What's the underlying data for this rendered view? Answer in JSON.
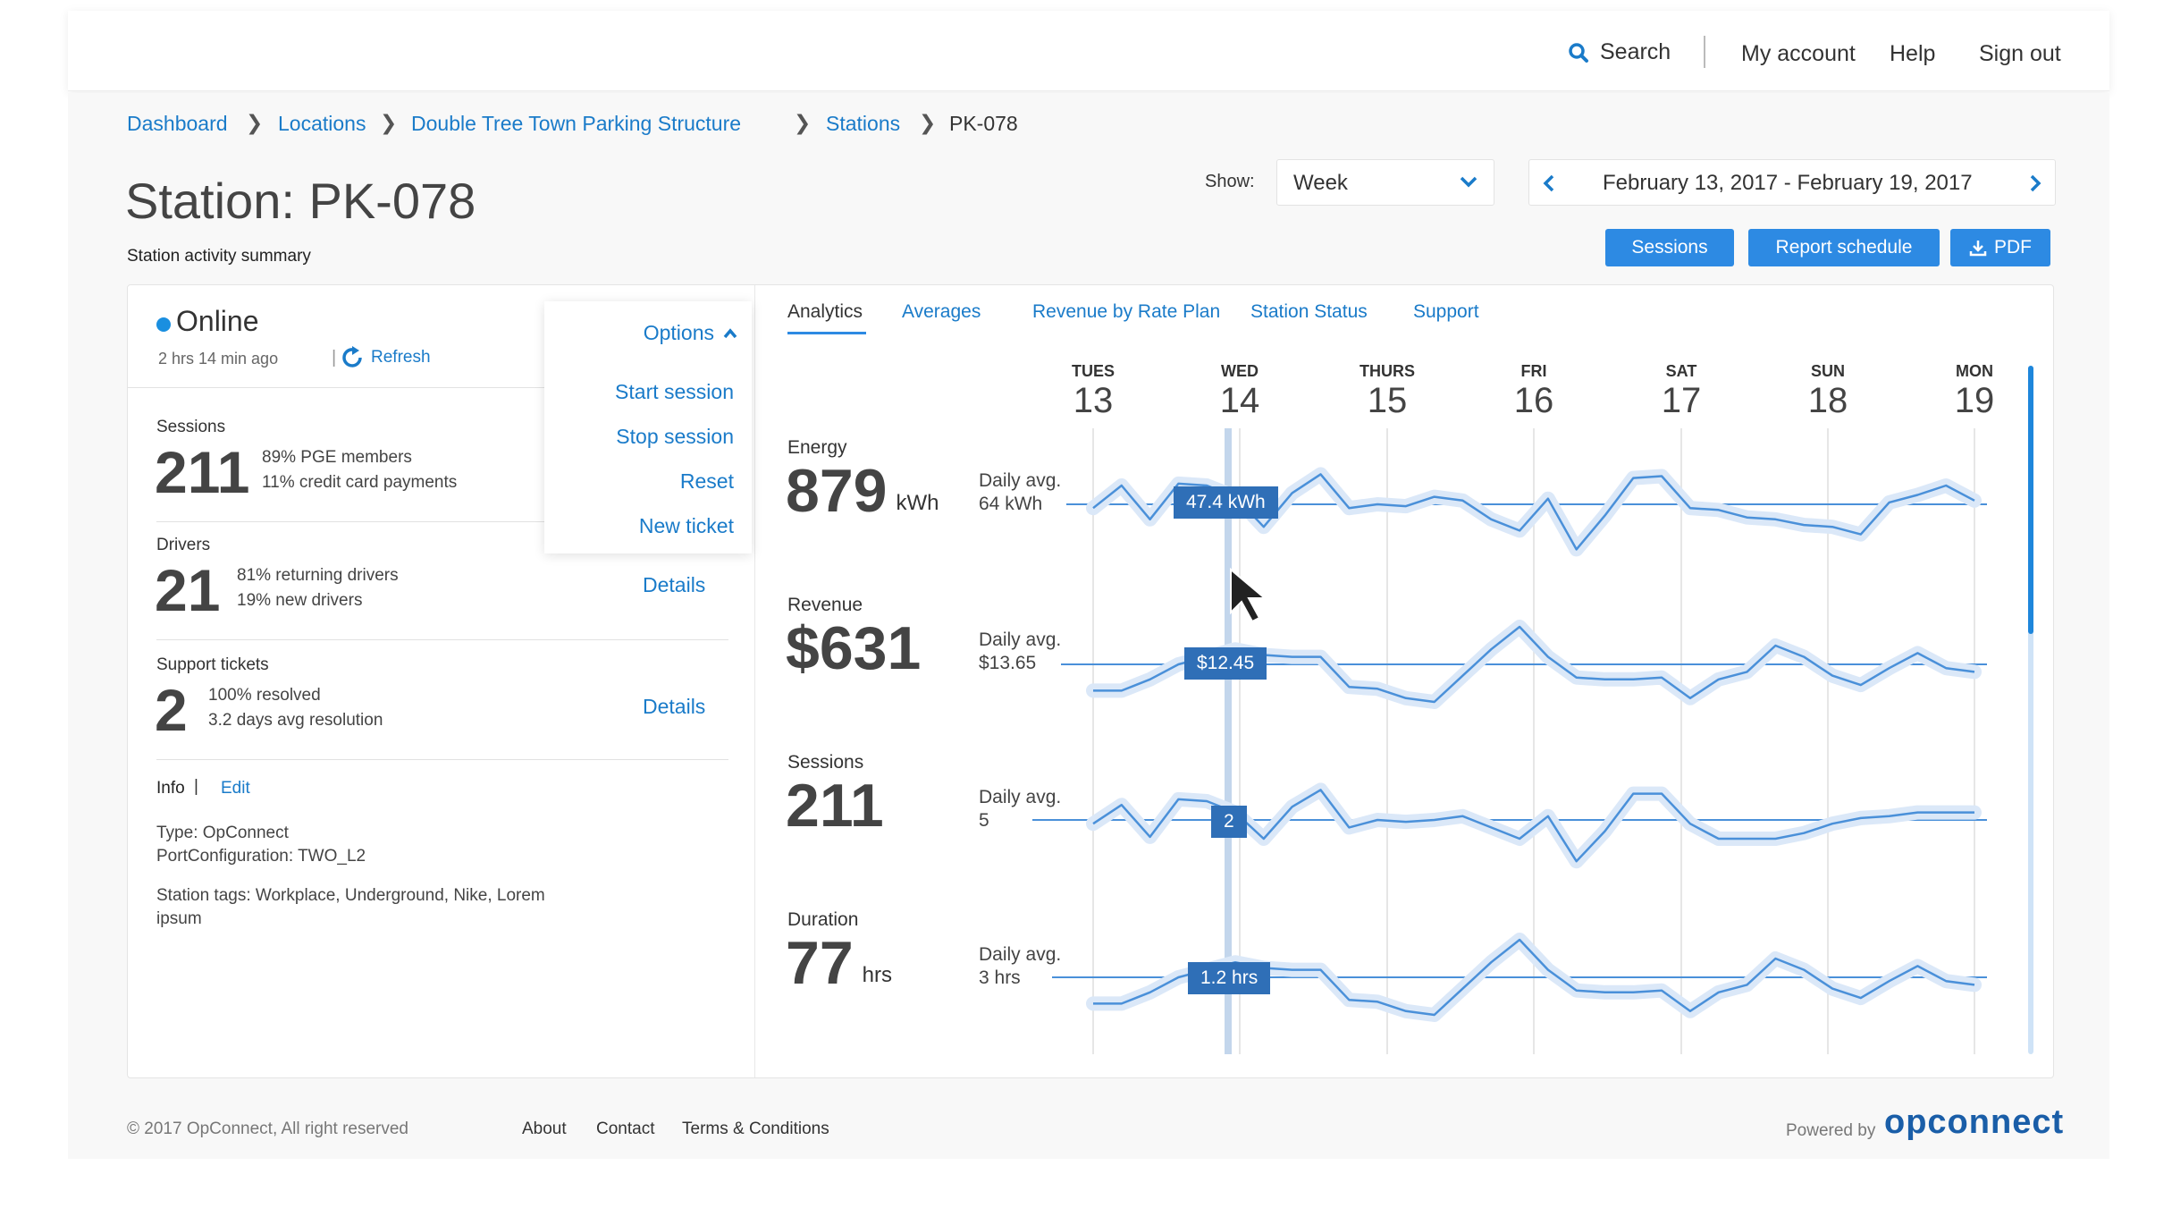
{
  "topnav": {
    "search": "Search",
    "my_account": "My account",
    "help": "Help",
    "sign_out": "Sign out"
  },
  "breadcrumb": {
    "items": [
      "Dashboard",
      "Locations",
      "Double Tree Town Parking Structure",
      "Stations"
    ],
    "current": "PK-078"
  },
  "page": {
    "title": "Station: PK-078",
    "subtitle": "Station activity summary"
  },
  "controls": {
    "show_label": "Show:",
    "period_selected": "Week",
    "date_range": "February 13, 2017 - February 19, 2017",
    "buttons": {
      "sessions": "Sessions",
      "report_schedule": "Report schedule",
      "pdf": "PDF"
    }
  },
  "status": {
    "state": "Online",
    "updated": "2 hrs 14 min ago",
    "refresh": "Refresh",
    "color": "#1a8fe0"
  },
  "options_menu": {
    "label": "Options",
    "items": [
      "Start session",
      "Stop session",
      "Reset",
      "New ticket"
    ]
  },
  "summary": {
    "sessions": {
      "label": "Sessions",
      "value": "211",
      "line1": "89% PGE members",
      "line2": "11% credit card payments"
    },
    "drivers": {
      "label": "Drivers",
      "value": "21",
      "line1": "81% returning drivers",
      "line2": "19% new drivers",
      "action": "Details"
    },
    "tickets": {
      "label": "Support tickets",
      "value": "2",
      "line1": "100% resolved",
      "line2": "3.2 days avg resolution",
      "action": "Details"
    }
  },
  "info": {
    "label": "Info",
    "edit": "Edit",
    "type": "Type: OpConnect",
    "port": "PortConfiguration: TWO_L2",
    "tags_line1": "Station tags: Workplace, Underground, Nike, Lorem",
    "tags_line2": "ipsum"
  },
  "tabs": [
    "Analytics",
    "Averages",
    "Revenue by Rate Plan",
    "Station Status",
    "Support"
  ],
  "days": [
    {
      "day": "TUES",
      "num": "13"
    },
    {
      "day": "WED",
      "num": "14"
    },
    {
      "day": "THURS",
      "num": "15"
    },
    {
      "day": "FRI",
      "num": "16"
    },
    {
      "day": "SAT",
      "num": "17"
    },
    {
      "day": "SUN",
      "num": "18"
    },
    {
      "day": "MON",
      "num": "19"
    }
  ],
  "metrics": [
    {
      "title": "Energy",
      "value": "879",
      "unit": "kWh",
      "avg_label": "Daily avg.",
      "avg_value": "64 kWh",
      "tooltip": "47.4 kWh"
    },
    {
      "title": "Revenue",
      "value": "$631",
      "unit": "",
      "avg_label": "Daily avg.",
      "avg_value": "$13.65",
      "tooltip": "$12.45"
    },
    {
      "title": "Sessions",
      "value": "211",
      "unit": "",
      "avg_label": "Daily avg.",
      "avg_value": "5",
      "tooltip": "2"
    },
    {
      "title": "Duration",
      "value": "77",
      "unit": "hrs",
      "avg_label": "Daily avg.",
      "avg_value": "3 hrs",
      "tooltip": "1.2 hrs"
    }
  ],
  "footer": {
    "copyright": "© 2017 OpConnect, All right reserved",
    "links": [
      "About",
      "Contact",
      "Terms & Conditions"
    ],
    "powered_by": "Powered by",
    "brand": "opconnect"
  },
  "colors": {
    "accent": "#2d8ae3",
    "link": "#1a7bc9",
    "tooltip_bg": "#2f6fb7",
    "line": "#4a90d9",
    "halo": "#dbe8f8"
  }
}
